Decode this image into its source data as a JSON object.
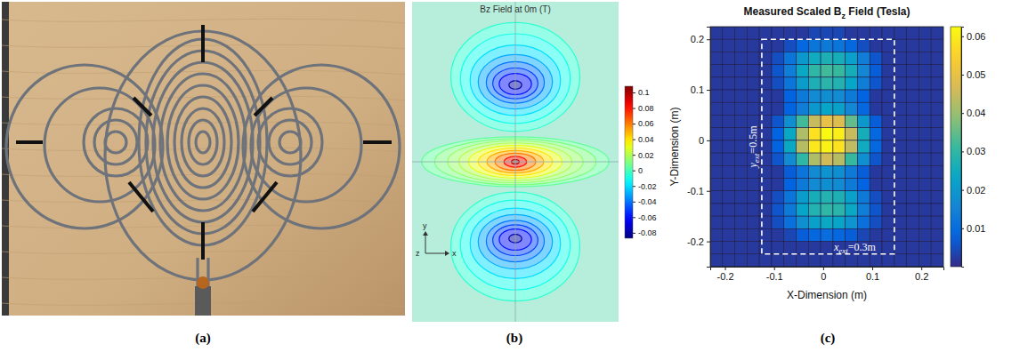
{
  "chart_data": [
    {
      "type": "image",
      "panel_label": "(a)"
    },
    {
      "type": "contour",
      "panel_label": "(b)",
      "title": "Bz Field at 0m (T)",
      "axis_labels": [
        "y",
        "z",
        "x"
      ],
      "xlim": [
        -0.32,
        0.32
      ],
      "ylim": [
        -0.5,
        0.5
      ],
      "tick_labels": false,
      "contours": [
        {
          "level": 0.005,
          "cx": 0,
          "cy": 0,
          "rx": 0.29,
          "ry": 0.078
        },
        {
          "level": 0.01,
          "cx": 0,
          "cy": 0,
          "rx": 0.25,
          "ry": 0.072
        },
        {
          "level": 0.015,
          "cx": 0,
          "cy": 0,
          "rx": 0.21,
          "ry": 0.066
        },
        {
          "level": 0.02,
          "cx": 0,
          "cy": 0,
          "rx": 0.175,
          "ry": 0.059
        },
        {
          "level": 0.03,
          "cx": 0,
          "cy": 0,
          "rx": 0.145,
          "ry": 0.051
        },
        {
          "level": 0.04,
          "cx": 0,
          "cy": 0,
          "rx": 0.115,
          "ry": 0.043
        },
        {
          "level": 0.05,
          "cx": 0,
          "cy": 0,
          "rx": 0.088,
          "ry": 0.035
        },
        {
          "level": 0.06,
          "cx": 0,
          "cy": 0,
          "rx": 0.063,
          "ry": 0.027
        },
        {
          "level": 0.08,
          "cx": 0,
          "cy": 0,
          "rx": 0.035,
          "ry": 0.017
        },
        {
          "level": 0.1,
          "cx": 0,
          "cy": 0,
          "rx": 0.012,
          "ry": 0.007
        },
        {
          "level": -0.005,
          "cx": 0,
          "cy": 0.265,
          "rx": 0.2,
          "ry": 0.17
        },
        {
          "level": -0.01,
          "cx": 0,
          "cy": 0.26,
          "rx": 0.17,
          "ry": 0.14
        },
        {
          "level": -0.02,
          "cx": 0,
          "cy": 0.255,
          "rx": 0.14,
          "ry": 0.11
        },
        {
          "level": -0.03,
          "cx": 0,
          "cy": 0.25,
          "rx": 0.115,
          "ry": 0.085
        },
        {
          "level": -0.04,
          "cx": 0,
          "cy": 0.248,
          "rx": 0.09,
          "ry": 0.065
        },
        {
          "level": -0.05,
          "cx": 0,
          "cy": 0.245,
          "rx": 0.07,
          "ry": 0.048
        },
        {
          "level": -0.06,
          "cx": 0,
          "cy": 0.243,
          "rx": 0.05,
          "ry": 0.033
        },
        {
          "level": -0.08,
          "cx": 0,
          "cy": 0.24,
          "rx": 0.02,
          "ry": 0.013
        },
        {
          "level": -0.005,
          "cx": 0,
          "cy": -0.265,
          "rx": 0.2,
          "ry": 0.17
        },
        {
          "level": -0.01,
          "cx": 0,
          "cy": -0.26,
          "rx": 0.17,
          "ry": 0.14
        },
        {
          "level": -0.02,
          "cx": 0,
          "cy": -0.255,
          "rx": 0.14,
          "ry": 0.11
        },
        {
          "level": -0.03,
          "cx": 0,
          "cy": -0.25,
          "rx": 0.115,
          "ry": 0.085
        },
        {
          "level": -0.04,
          "cx": 0,
          "cy": -0.248,
          "rx": 0.09,
          "ry": 0.065
        },
        {
          "level": -0.05,
          "cx": 0,
          "cy": -0.245,
          "rx": 0.07,
          "ry": 0.048
        },
        {
          "level": -0.06,
          "cx": 0,
          "cy": -0.243,
          "rx": 0.05,
          "ry": 0.033
        },
        {
          "level": -0.08,
          "cx": 0,
          "cy": -0.24,
          "rx": 0.02,
          "ry": 0.013
        }
      ],
      "colorbar": {
        "range": [
          -0.087,
          0.108
        ],
        "ticks": [
          0.1,
          0.08,
          0.06,
          0.04,
          0.02,
          0,
          -0.02,
          -0.04,
          -0.06,
          -0.08
        ]
      }
    },
    {
      "type": "heatmap",
      "panel_label": "(c)",
      "title": {
        "text": "Measured Scaled B",
        "subscript": "z",
        "tail": " Field (Tesla)"
      },
      "x_label": "X-Dimension (m)",
      "y_label": "Y-Dimension (m)",
      "xlim": [
        -0.23,
        0.245
      ],
      "ylim": [
        -0.25,
        0.225
      ],
      "xticks": [
        -0.2,
        -0.1,
        0,
        0.1,
        0.2
      ],
      "yticks": [
        -0.2,
        -0.1,
        0,
        0.1,
        0.2
      ],
      "x": [
        -0.2175,
        -0.1925,
        -0.1675,
        -0.1425,
        -0.1175,
        -0.0925,
        -0.0675,
        -0.0425,
        -0.0175,
        0.0075,
        0.0325,
        0.0575,
        0.0825,
        0.1075,
        0.1325,
        0.1575,
        0.1825,
        0.2075,
        0.2325
      ],
      "y": [
        0.2125,
        0.1875,
        0.1625,
        0.1375,
        0.1125,
        0.0875,
        0.0625,
        0.0375,
        0.0125,
        -0.0125,
        -0.0375,
        -0.0625,
        -0.0875,
        -0.1125,
        -0.1375,
        -0.1625,
        -0.1875,
        -0.2125,
        -0.2375
      ],
      "z": [
        [
          0.002,
          0.002,
          0.002,
          0.002,
          0.002,
          0.002,
          0.002,
          0.002,
          0.004,
          0.004,
          0.004,
          0.002,
          0.002,
          0.002,
          0.002,
          0.002,
          0.002,
          0.002,
          0.002
        ],
        [
          0.002,
          0.002,
          0.002,
          0.002,
          0.002,
          0.002,
          0.005,
          0.009,
          0.012,
          0.013,
          0.012,
          0.009,
          0.005,
          0.002,
          0.002,
          0.002,
          0.002,
          0.002,
          0.002
        ],
        [
          0.002,
          0.002,
          0.002,
          0.002,
          0.002,
          0.005,
          0.012,
          0.02,
          0.025,
          0.027,
          0.026,
          0.022,
          0.014,
          0.006,
          0.002,
          0.002,
          0.002,
          0.002,
          0.002
        ],
        [
          0.002,
          0.002,
          0.002,
          0.002,
          0.002,
          0.006,
          0.014,
          0.024,
          0.03,
          0.032,
          0.031,
          0.026,
          0.016,
          0.007,
          0.002,
          0.002,
          0.002,
          0.002,
          0.002
        ],
        [
          0.002,
          0.002,
          0.002,
          0.002,
          0.002,
          0.005,
          0.012,
          0.021,
          0.027,
          0.029,
          0.028,
          0.023,
          0.014,
          0.006,
          0.002,
          0.002,
          0.002,
          0.002,
          0.002
        ],
        [
          0.002,
          0.002,
          0.002,
          0.002,
          0.002,
          0.002,
          0.008,
          0.013,
          0.017,
          0.018,
          0.017,
          0.013,
          0.008,
          0.002,
          0.002,
          0.002,
          0.002,
          0.002,
          0.002
        ],
        [
          0.002,
          0.002,
          0.002,
          0.002,
          0.002,
          0.002,
          0.008,
          0.014,
          0.02,
          0.023,
          0.022,
          0.016,
          0.009,
          0.002,
          0.002,
          0.002,
          0.002,
          0.002,
          0.002
        ],
        [
          0.002,
          0.002,
          0.002,
          0.002,
          0.002,
          0.006,
          0.018,
          0.032,
          0.045,
          0.05,
          0.048,
          0.035,
          0.02,
          0.007,
          0.002,
          0.002,
          0.002,
          0.002,
          0.002
        ],
        [
          0.002,
          0.002,
          0.002,
          0.002,
          0.002,
          0.008,
          0.024,
          0.042,
          0.058,
          0.062,
          0.06,
          0.045,
          0.026,
          0.009,
          0.002,
          0.002,
          0.002,
          0.002,
          0.002
        ],
        [
          0.002,
          0.002,
          0.002,
          0.002,
          0.002,
          0.008,
          0.024,
          0.043,
          0.059,
          0.061,
          0.058,
          0.044,
          0.025,
          0.009,
          0.002,
          0.002,
          0.002,
          0.002,
          0.002
        ],
        [
          0.002,
          0.002,
          0.002,
          0.002,
          0.002,
          0.006,
          0.017,
          0.03,
          0.042,
          0.046,
          0.043,
          0.031,
          0.018,
          0.006,
          0.002,
          0.002,
          0.002,
          0.002,
          0.002
        ],
        [
          0.002,
          0.002,
          0.002,
          0.002,
          0.002,
          0.002,
          0.007,
          0.012,
          0.017,
          0.019,
          0.018,
          0.013,
          0.007,
          0.002,
          0.002,
          0.002,
          0.002,
          0.002,
          0.002
        ],
        [
          0.002,
          0.002,
          0.002,
          0.002,
          0.002,
          0.002,
          0.008,
          0.013,
          0.017,
          0.018,
          0.017,
          0.013,
          0.008,
          0.002,
          0.002,
          0.002,
          0.002,
          0.002,
          0.002
        ],
        [
          0.002,
          0.002,
          0.002,
          0.002,
          0.002,
          0.005,
          0.012,
          0.021,
          0.026,
          0.028,
          0.027,
          0.022,
          0.013,
          0.005,
          0.002,
          0.002,
          0.002,
          0.002,
          0.002
        ],
        [
          0.002,
          0.002,
          0.002,
          0.002,
          0.002,
          0.006,
          0.013,
          0.023,
          0.028,
          0.03,
          0.029,
          0.024,
          0.014,
          0.006,
          0.002,
          0.002,
          0.002,
          0.002,
          0.002
        ],
        [
          0.002,
          0.002,
          0.002,
          0.002,
          0.002,
          0.005,
          0.011,
          0.018,
          0.022,
          0.024,
          0.023,
          0.019,
          0.011,
          0.005,
          0.002,
          0.002,
          0.002,
          0.002,
          0.002
        ],
        [
          0.002,
          0.002,
          0.002,
          0.002,
          0.002,
          0.002,
          0.004,
          0.007,
          0.009,
          0.01,
          0.009,
          0.007,
          0.004,
          0.002,
          0.002,
          0.002,
          0.002,
          0.002,
          0.002
        ],
        [
          0.002,
          0.002,
          0.002,
          0.002,
          0.002,
          0.002,
          0.002,
          0.002,
          0.002,
          0.002,
          0.002,
          0.002,
          0.002,
          0.002,
          0.002,
          0.002,
          0.002,
          0.002,
          0.002
        ],
        [
          0.002,
          0.002,
          0.002,
          0.002,
          0.002,
          0.002,
          0.002,
          0.002,
          0.002,
          0.002,
          0.002,
          0.002,
          0.002,
          0.002,
          0.002,
          0.002,
          0.002,
          0.002,
          0.002
        ]
      ],
      "colorbar": {
        "range": [
          0,
          0.0625
        ],
        "ticks": [
          0.01,
          0.02,
          0.03,
          0.04,
          0.05,
          0.06
        ]
      },
      "region": {
        "x": [
          -0.125,
          0.145
        ],
        "y": [
          -0.225,
          0.2
        ]
      },
      "annotations": [
        {
          "symbol": "y",
          "subscript": "ext",
          "text": "=0.5m"
        },
        {
          "symbol": "x",
          "subscript": "ext",
          "text": "=0.3m"
        }
      ]
    }
  ]
}
